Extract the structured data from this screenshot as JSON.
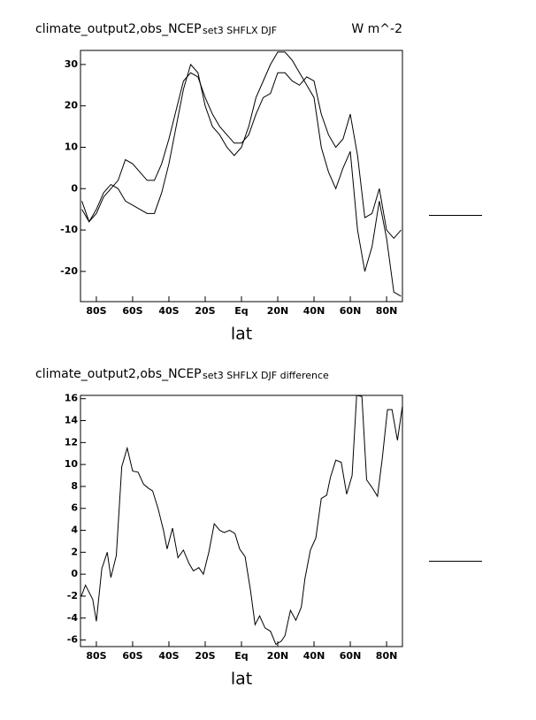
{
  "chart_data": [
    {
      "type": "line",
      "left_string": "climate_output2,obs_NCEP",
      "title": "set3 SHFLX DJF",
      "right_string": "W m^-2",
      "xlabel": "lat",
      "x": [
        -88,
        -84,
        -80,
        -76,
        -72,
        -68,
        -64,
        -60,
        -56,
        -52,
        -48,
        -44,
        -40,
        -36,
        -32,
        -28,
        -24,
        -20,
        -16,
        -12,
        -8,
        -4,
        0,
        4,
        8,
        12,
        16,
        20,
        24,
        28,
        32,
        36,
        40,
        44,
        48,
        52,
        56,
        60,
        64,
        68,
        72,
        76,
        80,
        84,
        88
      ],
      "series": [
        {
          "color": "#000000",
          "values": [
            -5,
            -8,
            -6,
            -2,
            0,
            2,
            7,
            6,
            4,
            2,
            2,
            6,
            12,
            19,
            26,
            28,
            27,
            22,
            18,
            15,
            13,
            11,
            11,
            13,
            18,
            22,
            23,
            28,
            28,
            26,
            25,
            27,
            26,
            18,
            13,
            10,
            12,
            18,
            8,
            -7,
            -6,
            0,
            -10,
            -12,
            -10
          ]
        },
        {
          "color": "#000000",
          "values": [
            -3,
            -8,
            -5,
            -1,
            1,
            0,
            -3,
            -4,
            -5,
            -6,
            -6,
            -1,
            6,
            15,
            24,
            30,
            28,
            20,
            15,
            13,
            10,
            8,
            10,
            15,
            22,
            26,
            30,
            33,
            33,
            31,
            28,
            25,
            22,
            10,
            4,
            0,
            5,
            9,
            -10,
            -20,
            -14,
            -3,
            -12,
            -25,
            -26
          ]
        }
      ],
      "xlim": [
        -88.75,
        88.75
      ],
      "ylim": [
        -27.3,
        33.4
      ],
      "xticks": [
        {
          "value": -80,
          "label": "80S"
        },
        {
          "value": -60,
          "label": "60S"
        },
        {
          "value": -40,
          "label": "40S"
        },
        {
          "value": -20,
          "label": "20S"
        },
        {
          "value": 0,
          "label": "Eq"
        },
        {
          "value": 20,
          "label": "20N"
        },
        {
          "value": 40,
          "label": "40N"
        },
        {
          "value": 60,
          "label": "60N"
        },
        {
          "value": 80,
          "label": "80N"
        }
      ],
      "yticks": [
        -20,
        -10,
        0,
        10,
        20,
        30
      ]
    },
    {
      "type": "line",
      "left_string": "climate_output2,obs_NCEP",
      "title": "set3 SHFLX DJF difference",
      "xlabel": "lat",
      "x": [
        -88.3,
        -86,
        -82,
        -80,
        -77,
        -74,
        -72,
        -69,
        -66,
        -63,
        -60,
        -57,
        -54,
        -51,
        -49,
        -46,
        -43,
        -41,
        -38,
        -35,
        -32,
        -29,
        -26.5,
        -23.5,
        -21,
        -18,
        -15,
        -12,
        -9.5,
        -6.5,
        -3.6,
        -1,
        2,
        5,
        7.5,
        10,
        13,
        16,
        19,
        22,
        24,
        27,
        30,
        33,
        35,
        38,
        41,
        44,
        47,
        49,
        52,
        55,
        58,
        61,
        63.5,
        66.4,
        69,
        72,
        75,
        77.6,
        80.5,
        83,
        86,
        88.7
      ],
      "series": [
        {
          "color": "#000000",
          "values": [
            -2,
            -1,
            -2.3,
            -4.3,
            0.5,
            2,
            -0.3,
            1.7,
            9.8,
            11.5,
            9.4,
            9.3,
            8.2,
            7.8,
            7.6,
            6,
            4,
            2.3,
            4.2,
            1.5,
            2.2,
            1,
            0.3,
            0.6,
            0,
            2,
            4.6,
            4,
            3.8,
            4,
            3.7,
            2.3,
            1.6,
            -1.5,
            -4.6,
            -3.8,
            -4.9,
            -5.2,
            -6.4,
            -6.1,
            -5.6,
            -3.3,
            -4.2,
            -3,
            -0.4,
            2.2,
            3.3,
            6.9,
            7.2,
            8.8,
            10.4,
            10.2,
            7.3,
            9,
            16.3,
            16.2,
            8.6,
            7.9,
            7.1,
            10.5,
            15,
            15,
            12.2,
            15.3
          ]
        }
      ],
      "xlim": [
        -88.75,
        88.75
      ],
      "ylim": [
        -6.6,
        16.3
      ],
      "xticks": [
        {
          "value": -80,
          "label": "80S"
        },
        {
          "value": -60,
          "label": "60S"
        },
        {
          "value": -40,
          "label": "40S"
        },
        {
          "value": -20,
          "label": "20S"
        },
        {
          "value": 0,
          "label": "Eq"
        },
        {
          "value": 20,
          "label": "20N"
        },
        {
          "value": 40,
          "label": "40N"
        },
        {
          "value": 60,
          "label": "60N"
        },
        {
          "value": 80,
          "label": "80N"
        }
      ],
      "yticks": [
        -6,
        -4,
        -2,
        0,
        2,
        4,
        6,
        8,
        10,
        12,
        14,
        16
      ]
    }
  ]
}
